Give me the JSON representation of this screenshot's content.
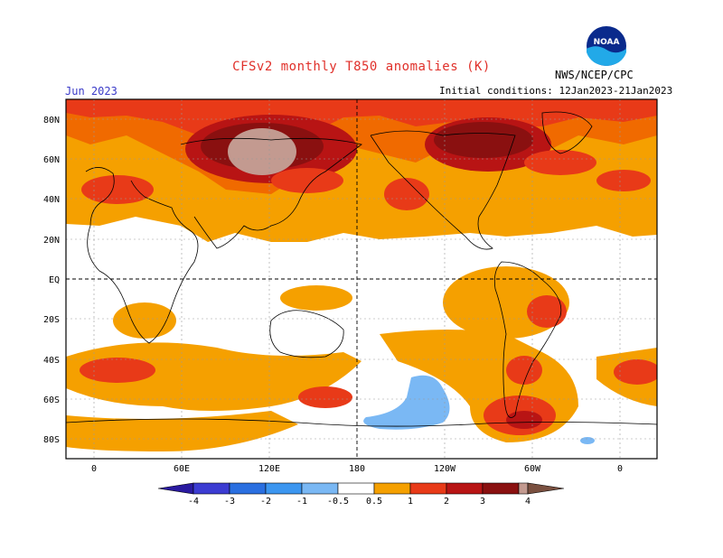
{
  "header": {
    "title": "CFSv2 monthly T850 anomalies (K)",
    "title_color": "#e0302a",
    "agency": "NWS/NCEP/CPC",
    "month": "Jun 2023",
    "month_color": "#3a3ac8",
    "initial_conditions": "Initial conditions: 12Jan2023-21Jan2023",
    "logo_text": "NOAA"
  },
  "map": {
    "projection": "cylindrical equidistant, 0-360E centered on 180",
    "lat_labels": [
      "80N",
      "60N",
      "40N",
      "20N",
      "EQ",
      "20S",
      "40S",
      "60S",
      "80S"
    ],
    "lon_labels": [
      "0",
      "60E",
      "120E",
      "180",
      "120W",
      "60W",
      "0"
    ],
    "gridlines": "dotted grey",
    "cross_lines": "dashed black at equator and 180"
  },
  "colorbar": {
    "ticks": [
      "-4",
      "-3",
      "-2",
      "-1",
      "-0.5",
      "0.5",
      "1",
      "2",
      "3",
      "4"
    ],
    "colors": [
      "#2a1aa0",
      "#3c3cd2",
      "#2a6fe0",
      "#3c96f0",
      "#7ab8f4",
      "#ffffff",
      "#f5a000",
      "#f06a00",
      "#e83a18",
      "#b81414",
      "#8a1010",
      "#c39a90",
      "#7a5040"
    ]
  }
}
